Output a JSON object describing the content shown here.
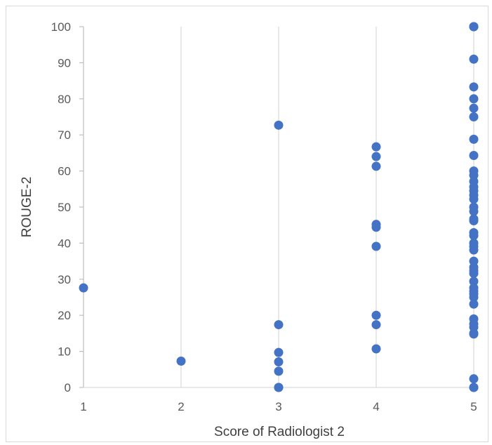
{
  "chart_data": {
    "type": "scatter",
    "title": "",
    "xlabel": "Score of Radiologist 2",
    "ylabel": "ROUGE-2",
    "xlim": [
      1,
      5
    ],
    "ylim": [
      0,
      100
    ],
    "x_ticks": [
      "1",
      "2",
      "3",
      "4",
      "5"
    ],
    "y_ticks": [
      "0",
      "10",
      "20",
      "30",
      "40",
      "50",
      "60",
      "70",
      "80",
      "90",
      "100"
    ],
    "grid": "vertical",
    "legend": "none",
    "marker_color": "#4472c4",
    "series": [
      {
        "points": [
          [
            1,
            27.6
          ],
          [
            2,
            7.3
          ],
          [
            3,
            72.7
          ],
          [
            3,
            17.4
          ],
          [
            3,
            9.7
          ],
          [
            3,
            7.1
          ],
          [
            3,
            4.5
          ],
          [
            3,
            0
          ],
          [
            3,
            0
          ],
          [
            4,
            66.7
          ],
          [
            4,
            64.0
          ],
          [
            4,
            61.3
          ],
          [
            4,
            45.2
          ],
          [
            4,
            44.4
          ],
          [
            4,
            39.1
          ],
          [
            4,
            20.0
          ],
          [
            4,
            17.4
          ],
          [
            4,
            10.7
          ],
          [
            5,
            100
          ],
          [
            5,
            100
          ],
          [
            5,
            100
          ],
          [
            5,
            91.0
          ],
          [
            5,
            83.3
          ],
          [
            5,
            80.0
          ],
          [
            5,
            77.4
          ],
          [
            5,
            75.0
          ],
          [
            5,
            68.8
          ],
          [
            5,
            64.3
          ],
          [
            5,
            60.0
          ],
          [
            5,
            58.8
          ],
          [
            5,
            57.1
          ],
          [
            5,
            55.6
          ],
          [
            5,
            54.5
          ],
          [
            5,
            53.3
          ],
          [
            5,
            52.2
          ],
          [
            5,
            50.0
          ],
          [
            5,
            48.8
          ],
          [
            5,
            46.7
          ],
          [
            5,
            46.2
          ],
          [
            5,
            42.9
          ],
          [
            5,
            42.1
          ],
          [
            5,
            40.0
          ],
          [
            5,
            39.1
          ],
          [
            5,
            38.1
          ],
          [
            5,
            35.0
          ],
          [
            5,
            33.3
          ],
          [
            5,
            32.4
          ],
          [
            5,
            31.6
          ],
          [
            5,
            29.4
          ],
          [
            5,
            27.6
          ],
          [
            5,
            26.7
          ],
          [
            5,
            25.9
          ],
          [
            5,
            25.0
          ],
          [
            5,
            23.1
          ],
          [
            5,
            19.0
          ],
          [
            5,
            17.6
          ],
          [
            5,
            16.7
          ],
          [
            5,
            15.0
          ],
          [
            5,
            14.8
          ],
          [
            5,
            2.4
          ],
          [
            5,
            0
          ],
          [
            5,
            0
          ]
        ]
      }
    ]
  }
}
